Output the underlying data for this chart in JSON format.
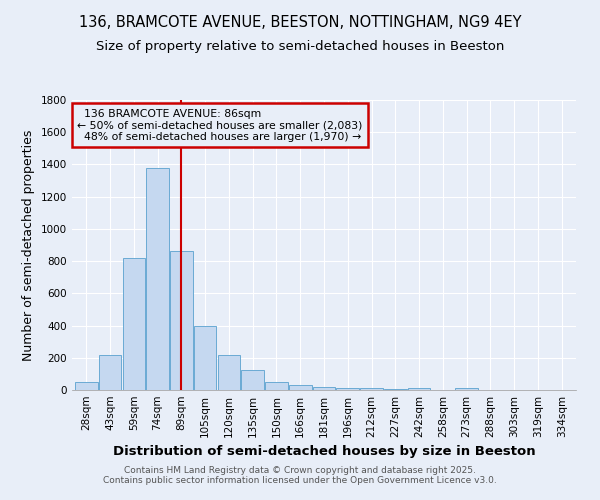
{
  "title_line1": "136, BRAMCOTE AVENUE, BEESTON, NOTTINGHAM, NG9 4EY",
  "title_line2": "Size of property relative to semi-detached houses in Beeston",
  "xlabel": "Distribution of semi-detached houses by size in Beeston",
  "ylabel": "Number of semi-detached properties",
  "categories": [
    "28sqm",
    "43sqm",
    "59sqm",
    "74sqm",
    "89sqm",
    "105sqm",
    "120sqm",
    "135sqm",
    "150sqm",
    "166sqm",
    "181sqm",
    "196sqm",
    "212sqm",
    "227sqm",
    "242sqm",
    "258sqm",
    "273sqm",
    "288sqm",
    "303sqm",
    "319sqm",
    "334sqm"
  ],
  "values": [
    50,
    220,
    820,
    1380,
    860,
    395,
    220,
    125,
    50,
    30,
    20,
    15,
    10,
    5,
    10,
    0,
    10,
    0,
    0,
    0,
    0
  ],
  "bar_color": "#c5d8f0",
  "bar_edge_color": "#6aaad4",
  "property_index": 4,
  "property_label": "136 BRAMCOTE AVENUE: 86sqm",
  "smaller_pct": "50% of semi-detached houses are smaller (2,083)",
  "larger_pct": "48% of semi-detached houses are larger (1,970)",
  "vline_color": "#cc0000",
  "annotation_box_color": "#cc0000",
  "ylim": [
    0,
    1800
  ],
  "yticks": [
    0,
    200,
    400,
    600,
    800,
    1000,
    1200,
    1400,
    1600,
    1800
  ],
  "background_color": "#e8eef8",
  "footer_line1": "Contains HM Land Registry data © Crown copyright and database right 2025.",
  "footer_line2": "Contains public sector information licensed under the Open Government Licence v3.0.",
  "title_fontsize": 10.5,
  "subtitle_fontsize": 9.5,
  "axis_label_fontsize": 9,
  "tick_fontsize": 7.5,
  "footer_fontsize": 6.5
}
